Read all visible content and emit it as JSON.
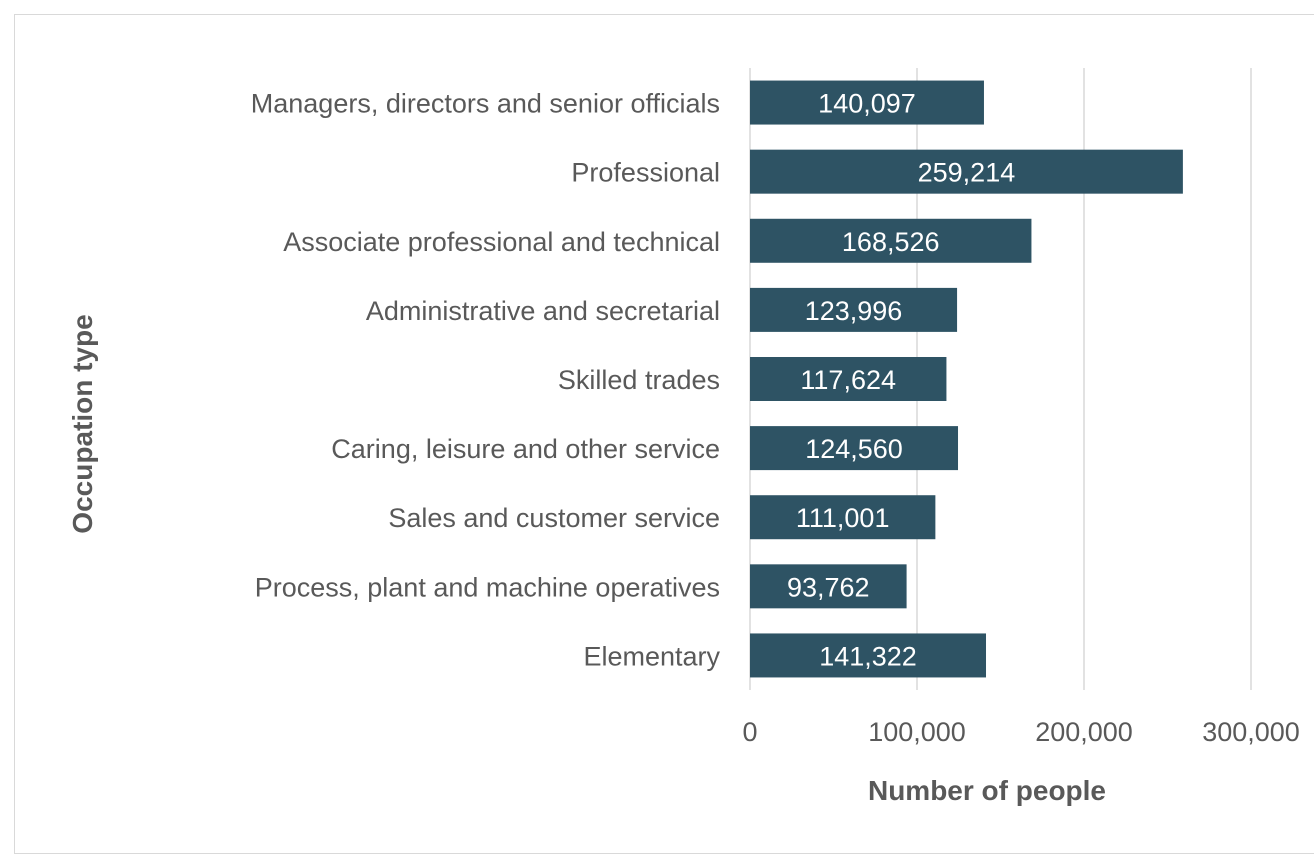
{
  "chart_data": {
    "type": "bar",
    "orientation": "horizontal",
    "xlabel": "Number of people",
    "ylabel": "Occupation type",
    "xlim": [
      0,
      300000
    ],
    "xticks": [
      0,
      100000,
      200000,
      300000
    ],
    "xtick_labels": [
      "0",
      "100,000",
      "200,000",
      "300,000"
    ],
    "gridlines": true,
    "legend": "none",
    "bar_color": "#2e5364",
    "categories": [
      "Managers, directors and senior officials",
      "Professional",
      "Associate professional and technical",
      "Administrative and secretarial",
      "Skilled trades",
      "Caring, leisure and other service",
      "Sales and customer service",
      "Process, plant and machine operatives",
      "Elementary"
    ],
    "values": [
      140097,
      259214,
      168526,
      123996,
      117624,
      124560,
      111001,
      93762,
      141322
    ],
    "data_labels": [
      "140,097",
      "259,214",
      "168,526",
      "123,996",
      "117,624",
      "124,560",
      "111,001",
      "93,762",
      "141,322"
    ]
  }
}
